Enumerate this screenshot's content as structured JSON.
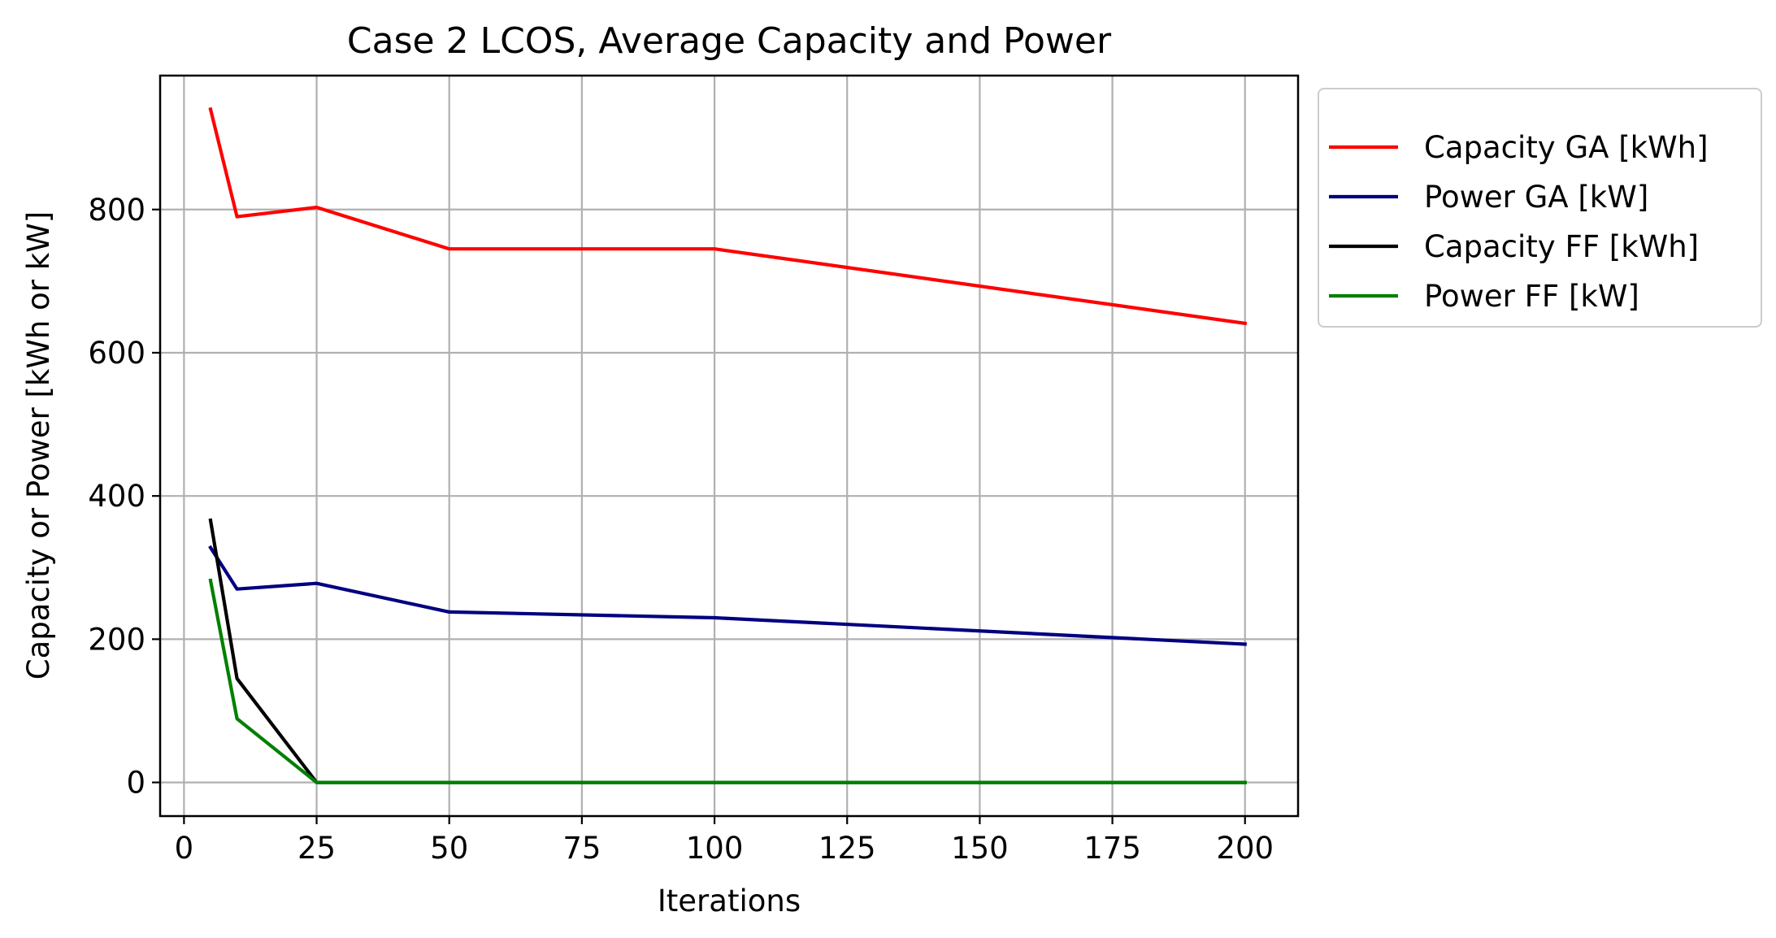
{
  "chart_data": {
    "type": "line",
    "title": "Case 2 LCOS, Average Capacity and Power",
    "xlabel": "Iterations",
    "ylabel": "Capacity or Power [kWh or kW]",
    "xlim": [
      -4.5,
      210
    ],
    "ylim": [
      -47,
      987
    ],
    "xticks": [
      0,
      25,
      50,
      75,
      100,
      125,
      150,
      175,
      200
    ],
    "yticks": [
      0,
      200,
      400,
      600,
      800
    ],
    "grid": true,
    "legend_position": "outside-top-right",
    "x": [
      5,
      10,
      25,
      50,
      100,
      200
    ],
    "series": [
      {
        "name": "Capacity GA [kWh]",
        "color": "#ff0000",
        "values": [
          940,
          790,
          803,
          745,
          745,
          641
        ]
      },
      {
        "name": "Power GA [kW]",
        "color": "#000080",
        "values": [
          328,
          270,
          278,
          238,
          230,
          193
        ]
      },
      {
        "name": "Capacity FF [kWh]",
        "color": "#000000",
        "values": [
          366,
          145,
          0,
          0,
          0,
          0
        ]
      },
      {
        "name": "Power FF [kW]",
        "color": "#008000",
        "values": [
          282,
          89,
          0,
          0,
          0,
          0
        ]
      }
    ]
  }
}
